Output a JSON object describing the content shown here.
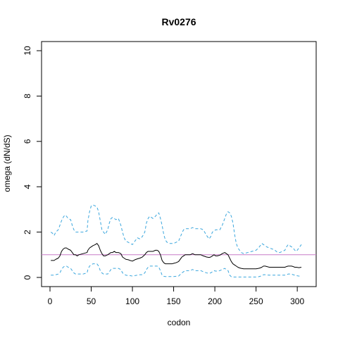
{
  "chart_data": {
    "type": "line",
    "title": "Rv0276",
    "xlabel": "codon",
    "ylabel": "omega (dN/dS)",
    "xlim": [
      0,
      305
    ],
    "ylim": [
      0,
      10
    ],
    "x_ticks": [
      0,
      50,
      100,
      150,
      200,
      250,
      300
    ],
    "y_ticks": [
      0,
      2,
      4,
      6,
      8,
      10
    ],
    "grid": false,
    "legend": "none",
    "reference_line": {
      "y": 1,
      "color": "#c77cc7"
    },
    "series": [
      {
        "role": "upper",
        "style": "dashed",
        "color": "#3aa6dd",
        "x": [
          1,
          3,
          5,
          7,
          10,
          12,
          14,
          16,
          18,
          20,
          22,
          25,
          27,
          29,
          31,
          33,
          35,
          40,
          45,
          46,
          48,
          50,
          52,
          55,
          57,
          59,
          61,
          63,
          65,
          67,
          70,
          72,
          74,
          76,
          78,
          80,
          83,
          86,
          88,
          90,
          92,
          95,
          97,
          100,
          103,
          106,
          109,
          112,
          115,
          117,
          119,
          121,
          123,
          125,
          128,
          130,
          132,
          134,
          136,
          138,
          140,
          142,
          145,
          148,
          150,
          153,
          156,
          160,
          162,
          164,
          166,
          168,
          170,
          173,
          176,
          180,
          183,
          186,
          190,
          193,
          195,
          197,
          199,
          201,
          203,
          206,
          209,
          212,
          214,
          216,
          218,
          220,
          222,
          224,
          226,
          228,
          230,
          232,
          235,
          240,
          245,
          250,
          253,
          255,
          257,
          259,
          261,
          263,
          266,
          270,
          273,
          276,
          279,
          282,
          285,
          287,
          289,
          291,
          293,
          295,
          297,
          299,
          302,
          305
        ],
        "y": [
          2.0,
          1.95,
          1.85,
          2.0,
          2.1,
          2.3,
          2.5,
          2.65,
          2.75,
          2.7,
          2.6,
          2.55,
          2.3,
          2.1,
          2.0,
          2.0,
          2.0,
          2.0,
          2.05,
          2.5,
          2.9,
          3.15,
          3.2,
          3.15,
          3.1,
          2.9,
          2.5,
          2.1,
          2.0,
          1.9,
          2.1,
          2.4,
          2.6,
          2.65,
          2.6,
          2.55,
          2.6,
          2.3,
          2.0,
          1.75,
          1.6,
          1.55,
          1.5,
          1.45,
          1.6,
          1.75,
          1.7,
          1.8,
          2.0,
          2.4,
          2.6,
          2.7,
          2.65,
          2.6,
          2.7,
          2.8,
          2.85,
          2.6,
          2.3,
          1.9,
          1.65,
          1.55,
          1.5,
          1.5,
          1.5,
          1.55,
          1.6,
          1.95,
          2.1,
          2.15,
          2.15,
          2.15,
          2.15,
          2.2,
          2.15,
          2.15,
          2.15,
          2.1,
          1.85,
          1.7,
          1.8,
          2.0,
          2.05,
          2.1,
          2.1,
          2.1,
          2.3,
          2.6,
          2.8,
          2.9,
          2.85,
          2.7,
          2.4,
          1.9,
          1.5,
          1.3,
          1.2,
          1.1,
          1.05,
          1.1,
          1.15,
          1.2,
          1.3,
          1.4,
          1.5,
          1.45,
          1.4,
          1.35,
          1.3,
          1.25,
          1.2,
          1.1,
          1.1,
          1.15,
          1.2,
          1.35,
          1.45,
          1.4,
          1.35,
          1.3,
          1.2,
          1.15,
          1.3,
          1.45
        ]
      },
      {
        "role": "estimate",
        "style": "solid",
        "color": "#000000",
        "x": [
          1,
          3,
          5,
          7,
          10,
          12,
          14,
          16,
          18,
          20,
          22,
          25,
          27,
          29,
          31,
          33,
          35,
          40,
          45,
          46,
          48,
          50,
          52,
          55,
          57,
          59,
          61,
          63,
          65,
          67,
          70,
          72,
          74,
          76,
          78,
          80,
          83,
          86,
          88,
          90,
          92,
          95,
          97,
          100,
          103,
          106,
          109,
          112,
          115,
          117,
          119,
          121,
          123,
          125,
          128,
          130,
          132,
          134,
          136,
          138,
          140,
          142,
          145,
          148,
          150,
          153,
          156,
          160,
          162,
          164,
          166,
          168,
          170,
          173,
          176,
          180,
          183,
          186,
          190,
          193,
          195,
          197,
          199,
          201,
          203,
          206,
          209,
          212,
          214,
          216,
          218,
          220,
          222,
          224,
          226,
          228,
          230,
          232,
          235,
          240,
          245,
          250,
          253,
          255,
          257,
          259,
          261,
          263,
          266,
          270,
          273,
          276,
          279,
          282,
          285,
          287,
          289,
          291,
          293,
          295,
          297,
          299,
          302,
          305
        ],
        "y": [
          0.75,
          0.75,
          0.75,
          0.8,
          0.85,
          0.95,
          1.15,
          1.25,
          1.3,
          1.3,
          1.25,
          1.2,
          1.1,
          1.0,
          1.0,
          0.95,
          1.0,
          1.05,
          1.1,
          1.2,
          1.3,
          1.35,
          1.4,
          1.45,
          1.5,
          1.4,
          1.2,
          1.05,
          0.95,
          0.95,
          1.0,
          1.05,
          1.1,
          1.1,
          1.15,
          1.1,
          1.1,
          1.05,
          0.9,
          0.85,
          0.8,
          0.78,
          0.75,
          0.72,
          0.78,
          0.82,
          0.85,
          0.9,
          1.0,
          1.1,
          1.15,
          1.15,
          1.15,
          1.15,
          1.2,
          1.2,
          1.15,
          1.0,
          0.75,
          0.65,
          0.6,
          0.6,
          0.6,
          0.6,
          0.62,
          0.65,
          0.7,
          0.9,
          0.95,
          1.0,
          1.0,
          1.0,
          1.0,
          1.05,
          1.0,
          1.0,
          1.0,
          0.95,
          0.9,
          0.88,
          0.9,
          0.95,
          1.0,
          0.95,
          0.95,
          0.98,
          1.05,
          1.1,
          1.05,
          1.0,
          0.85,
          0.7,
          0.6,
          0.55,
          0.5,
          0.45,
          0.42,
          0.4,
          0.38,
          0.38,
          0.38,
          0.38,
          0.4,
          0.42,
          0.45,
          0.5,
          0.5,
          0.48,
          0.45,
          0.45,
          0.45,
          0.45,
          0.45,
          0.45,
          0.45,
          0.48,
          0.5,
          0.5,
          0.5,
          0.48,
          0.45,
          0.45,
          0.43,
          0.45
        ]
      },
      {
        "role": "lower",
        "style": "dashed",
        "color": "#3aa6dd",
        "x": [
          1,
          3,
          5,
          7,
          10,
          12,
          14,
          16,
          18,
          20,
          22,
          25,
          27,
          29,
          31,
          33,
          35,
          40,
          45,
          46,
          48,
          50,
          52,
          55,
          57,
          59,
          61,
          63,
          65,
          67,
          70,
          72,
          74,
          76,
          78,
          80,
          83,
          86,
          88,
          90,
          92,
          95,
          97,
          100,
          103,
          106,
          109,
          112,
          115,
          117,
          119,
          121,
          123,
          125,
          128,
          130,
          132,
          134,
          136,
          138,
          140,
          142,
          145,
          148,
          150,
          153,
          156,
          160,
          162,
          164,
          166,
          168,
          170,
          173,
          176,
          180,
          183,
          186,
          190,
          193,
          195,
          197,
          199,
          201,
          203,
          206,
          209,
          212,
          214,
          216,
          218,
          220,
          222,
          224,
          226,
          228,
          230,
          232,
          235,
          240,
          245,
          250,
          253,
          255,
          257,
          259,
          261,
          263,
          266,
          270,
          273,
          276,
          279,
          282,
          285,
          287,
          289,
          291,
          293,
          295,
          297,
          299,
          302,
          305
        ],
        "y": [
          0.1,
          0.1,
          0.1,
          0.12,
          0.15,
          0.2,
          0.35,
          0.45,
          0.5,
          0.5,
          0.45,
          0.4,
          0.3,
          0.2,
          0.15,
          0.15,
          0.15,
          0.15,
          0.2,
          0.35,
          0.5,
          0.55,
          0.6,
          0.6,
          0.6,
          0.5,
          0.3,
          0.2,
          0.15,
          0.15,
          0.15,
          0.25,
          0.35,
          0.4,
          0.4,
          0.4,
          0.4,
          0.35,
          0.2,
          0.15,
          0.1,
          0.08,
          0.08,
          0.06,
          0.08,
          0.1,
          0.12,
          0.12,
          0.2,
          0.35,
          0.45,
          0.5,
          0.5,
          0.5,
          0.5,
          0.5,
          0.45,
          0.3,
          0.1,
          0.05,
          0.04,
          0.04,
          0.04,
          0.04,
          0.04,
          0.05,
          0.06,
          0.2,
          0.25,
          0.3,
          0.3,
          0.3,
          0.3,
          0.35,
          0.3,
          0.3,
          0.3,
          0.25,
          0.2,
          0.18,
          0.2,
          0.25,
          0.3,
          0.28,
          0.28,
          0.3,
          0.35,
          0.4,
          0.35,
          0.3,
          0.1,
          0.03,
          0.02,
          0.02,
          0.02,
          0.02,
          0.02,
          0.02,
          0.02,
          0.02,
          0.02,
          0.02,
          0.03,
          0.05,
          0.08,
          0.12,
          0.12,
          0.11,
          0.1,
          0.1,
          0.1,
          0.1,
          0.1,
          0.1,
          0.1,
          0.12,
          0.15,
          0.15,
          0.15,
          0.12,
          0.1,
          0.08,
          0.06,
          0.05
        ]
      }
    ]
  }
}
